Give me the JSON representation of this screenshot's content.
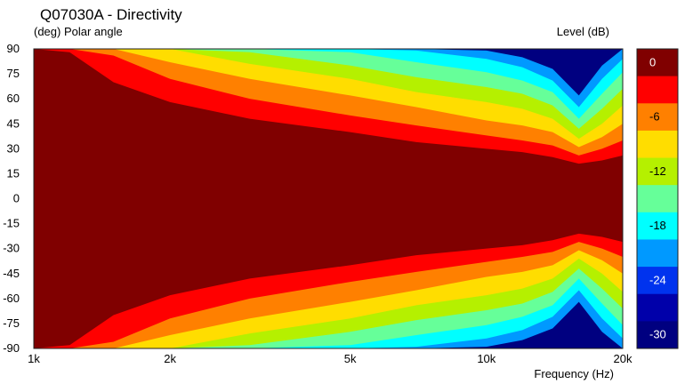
{
  "chart_data": {
    "type": "heatmap",
    "title": "Q07030A - Directivity",
    "ylabel": "(deg)  Polar angle",
    "xlabel": "Frequency  (Hz)",
    "colorbar_label": "Level  (dB)",
    "x_scale": "log",
    "xlim": [
      1000,
      20000
    ],
    "ylim": [
      -90,
      90
    ],
    "x_ticks": [
      {
        "value": 1000,
        "label": "1k"
      },
      {
        "value": 2000,
        "label": "2k"
      },
      {
        "value": 5000,
        "label": "5k"
      },
      {
        "value": 10000,
        "label": "10k"
      },
      {
        "value": 20000,
        "label": "20k"
      }
    ],
    "y_ticks": [
      90,
      75,
      60,
      45,
      30,
      15,
      0,
      -15,
      -30,
      -45,
      -60,
      -75,
      -90
    ],
    "colorbar_ticks": [
      "0",
      "-6",
      "-12",
      "-18",
      "-24",
      "-30"
    ],
    "levels": [
      {
        "range": [
          -3,
          0
        ],
        "color": "#800000"
      },
      {
        "range": [
          -6,
          -3
        ],
        "color": "#ff0000"
      },
      {
        "range": [
          -9,
          -6
        ],
        "color": "#ff8000"
      },
      {
        "range": [
          -12,
          -9
        ],
        "color": "#ffdd00"
      },
      {
        "range": [
          -15,
          -12
        ],
        "color": "#b5f000"
      },
      {
        "range": [
          -18,
          -15
        ],
        "color": "#66ff99"
      },
      {
        "range": [
          -21,
          -18
        ],
        "color": "#00ffff"
      },
      {
        "range": [
          -24,
          -21
        ],
        "color": "#0099ff"
      },
      {
        "range": [
          -27,
          -24
        ],
        "color": "#0033ee"
      },
      {
        "range": [
          -30,
          -27
        ],
        "color": "#0000aa"
      },
      {
        "range": [
          -33,
          -30
        ],
        "color": "#000080"
      }
    ],
    "contours": [
      {
        "level": -3,
        "freqs": [
          1000,
          1200,
          1500,
          2000,
          3000,
          5000,
          7000,
          10000,
          12000,
          14000,
          16000,
          18000,
          20000
        ],
        "angles": [
          70,
          58,
          47,
          42,
          37,
          30,
          27,
          24,
          22,
          20,
          17,
          16,
          16
        ]
      },
      {
        "level": -6,
        "freqs": [
          1000,
          1200,
          1500,
          2000,
          3000,
          5000,
          7000,
          10000,
          12000,
          14000,
          16000,
          18000,
          20000
        ],
        "angles": [
          90,
          88,
          70,
          58,
          48,
          40,
          34,
          30,
          28,
          25,
          21,
          23,
          26
        ]
      },
      {
        "level": -9,
        "freqs": [
          1000,
          1200,
          1500,
          2000,
          3000,
          5000,
          7000,
          10000,
          12000,
          14000,
          16000,
          18000,
          20000
        ],
        "angles": [
          90,
          90,
          86,
          72,
          60,
          50,
          44,
          38,
          35,
          32,
          26,
          30,
          35
        ]
      },
      {
        "level": -12,
        "freqs": [
          1000,
          1200,
          1500,
          2000,
          3000,
          5000,
          7000,
          10000,
          12000,
          14000,
          16000,
          18000,
          20000
        ],
        "angles": [
          90,
          90,
          90,
          82,
          72,
          62,
          55,
          47,
          44,
          40,
          31,
          37,
          45
        ]
      },
      {
        "level": -15,
        "freqs": [
          1000,
          1200,
          1500,
          2000,
          3000,
          5000,
          7000,
          10000,
          12000,
          14000,
          16000,
          18000,
          20000
        ],
        "angles": [
          90,
          90,
          90,
          90,
          81,
          72,
          64,
          58,
          54,
          48,
          36,
          45,
          56
        ]
      },
      {
        "level": -18,
        "freqs": [
          1000,
          1200,
          1500,
          2000,
          3000,
          5000,
          7000,
          10000,
          12000,
          14000,
          16000,
          18000,
          20000
        ],
        "angles": [
          90,
          90,
          90,
          90,
          88,
          80,
          73,
          67,
          63,
          56,
          42,
          54,
          66
        ]
      },
      {
        "level": -21,
        "freqs": [
          1000,
          1200,
          1500,
          2000,
          3000,
          5000,
          7000,
          10000,
          12000,
          14000,
          16000,
          18000,
          20000
        ],
        "angles": [
          90,
          90,
          90,
          90,
          90,
          88,
          82,
          76,
          71,
          64,
          48,
          63,
          76
        ]
      },
      {
        "level": -24,
        "freqs": [
          1000,
          1200,
          1500,
          2000,
          3000,
          5000,
          7000,
          10000,
          12000,
          14000,
          16000,
          18000,
          20000
        ],
        "angles": [
          90,
          90,
          90,
          90,
          90,
          90,
          89,
          84,
          79,
          71,
          55,
          72,
          84
        ]
      },
      {
        "level": -27,
        "freqs": [
          1000,
          1200,
          1500,
          2000,
          3000,
          5000,
          7000,
          10000,
          12000,
          14000,
          16000,
          18000,
          20000
        ],
        "angles": [
          90,
          90,
          90,
          90,
          90,
          90,
          90,
          89,
          85,
          78,
          62,
          80,
          90
        ]
      }
    ]
  }
}
